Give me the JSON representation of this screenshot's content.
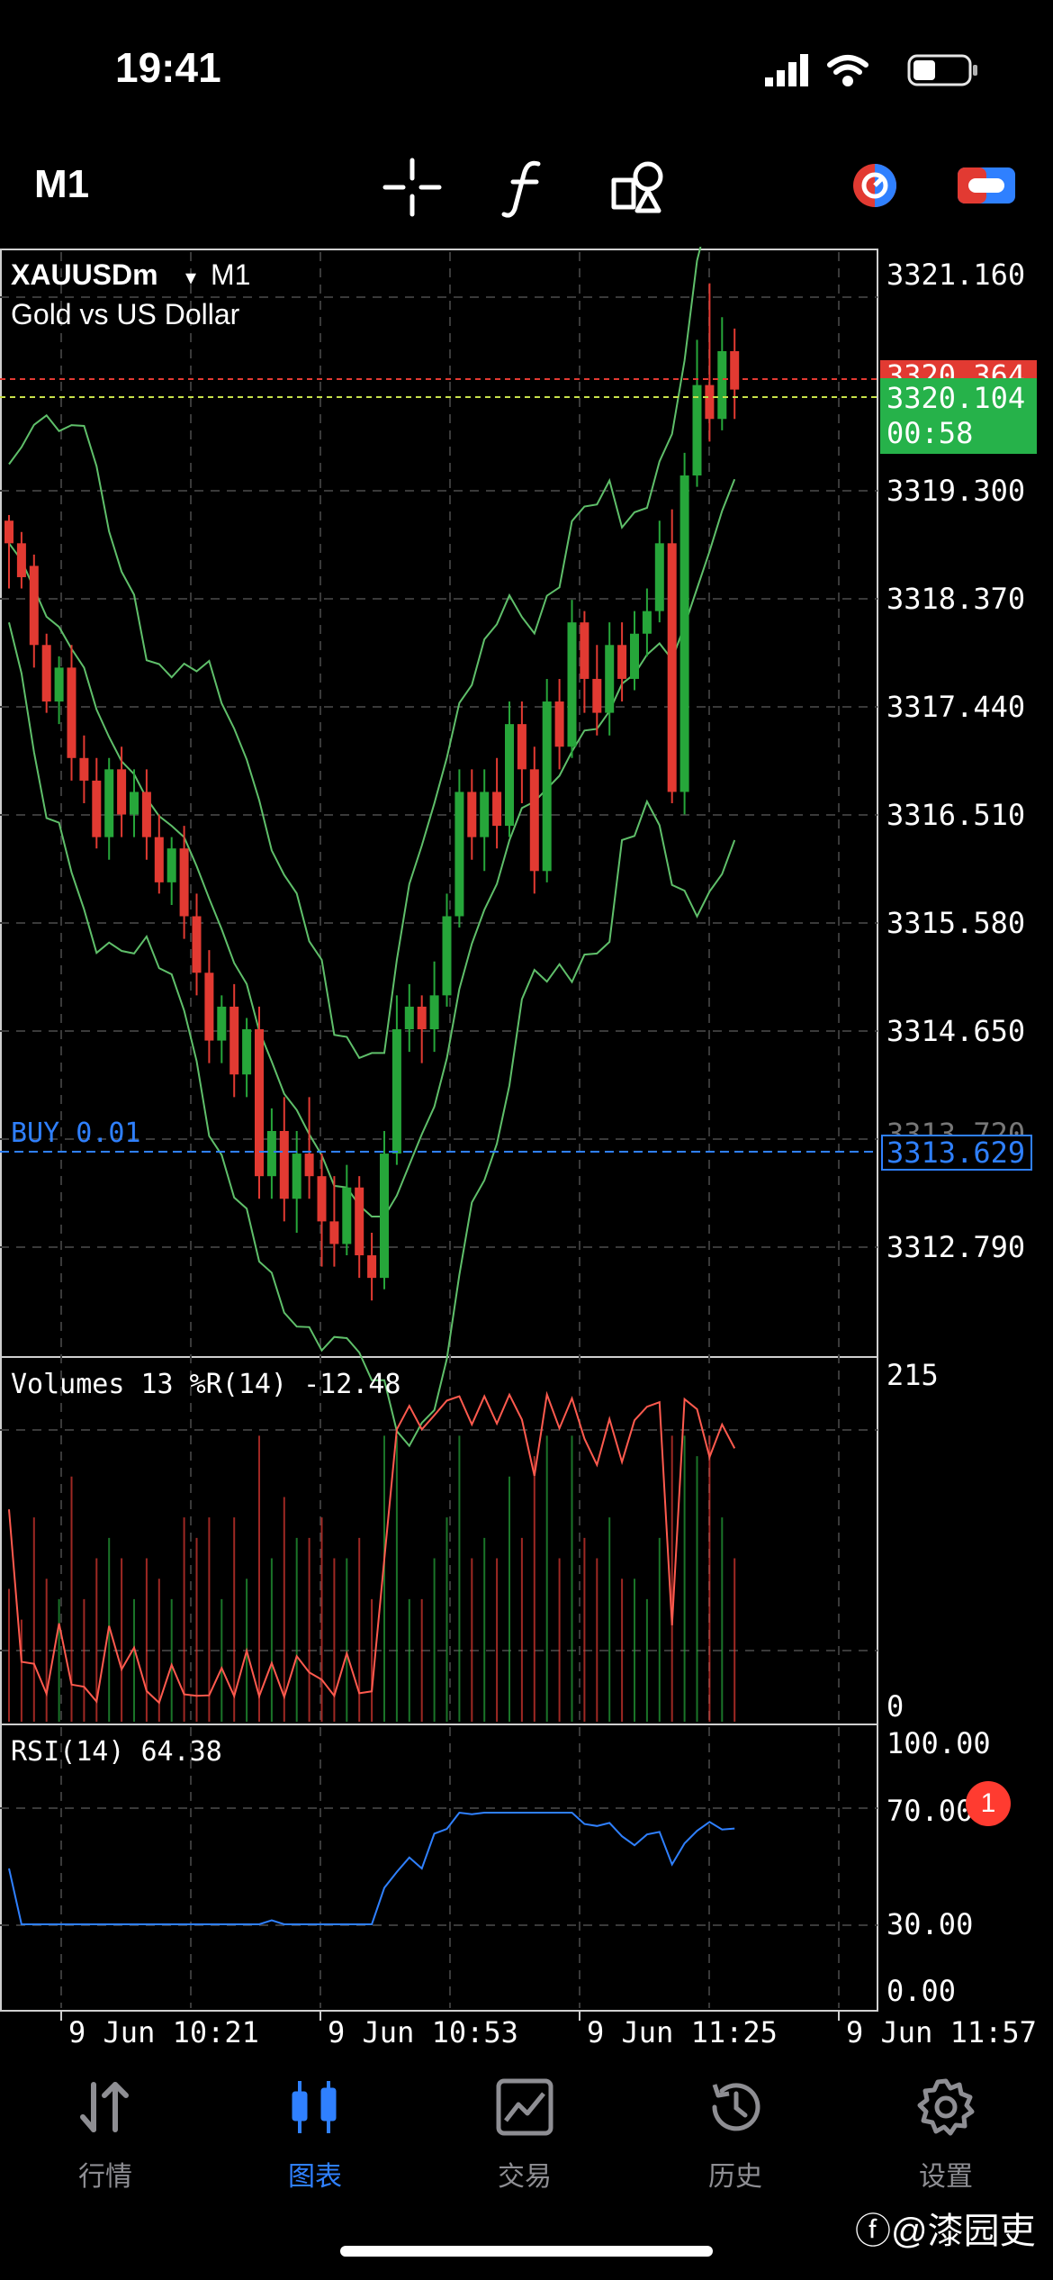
{
  "status": {
    "time": "19:41"
  },
  "toolbar": {
    "timeframe": "M1"
  },
  "chart_header": {
    "symbol": "XAUUSDm",
    "symbol_tf": "M1",
    "description": "Gold vs US Dollar"
  },
  "price_axis": [
    "3321.160",
    "3319.300",
    "3318.370",
    "3317.440",
    "3316.510",
    "3315.580",
    "3314.650",
    "3312.790"
  ],
  "price_labels": {
    "ask": "3320.364",
    "bid": "3320.104",
    "countdown": "00:58",
    "order_price": "3313.629",
    "order_hidden_tick": "3313.720"
  },
  "order_line": {
    "label": "BUY 0.01"
  },
  "volumes_panel": {
    "label": "Volumes 13 %R(14) -12.48",
    "max": "215",
    "min": "0"
  },
  "rsi_panel": {
    "label": "RSI(14) 64.38",
    "ticks": [
      "100.00",
      "70.00",
      "30.00",
      "0.00"
    ]
  },
  "time_axis": [
    "9 Jun 10:21",
    "9 Jun 10:53",
    "9 Jun 11:25",
    "9 Jun 11:57"
  ],
  "nav": [
    {
      "label": "行情",
      "icon": "quotes-icon"
    },
    {
      "label": "图表",
      "icon": "chart-icon",
      "active": true
    },
    {
      "label": "交易",
      "icon": "trade-icon"
    },
    {
      "label": "历史",
      "icon": "history-icon"
    },
    {
      "label": "设置",
      "icon": "settings-icon"
    }
  ],
  "settings_badge": "1",
  "watermark": "@漆园吏",
  "colors": {
    "bull": "#26a63a",
    "bear": "#e23a32",
    "accent": "#2f80ff",
    "grid": "#3a3a3a",
    "band": "#5fbf6a"
  },
  "chart_data": {
    "type": "candlestick",
    "symbol": "XAUUSDm",
    "timeframe": "M1",
    "y_range": [
      3311.8,
      3321.6
    ],
    "x_ticks": [
      "9 Jun 10:21",
      "9 Jun 10:53",
      "9 Jun 11:25",
      "9 Jun 11:57"
    ],
    "candles": [
      [
        3319.2,
        3319.0,
        3318.6,
        3319.25
      ],
      [
        3319.0,
        3318.7,
        3318.6,
        3319.1
      ],
      [
        3318.8,
        3318.1,
        3317.9,
        3318.9
      ],
      [
        3318.1,
        3317.6,
        3317.5,
        3318.2
      ],
      [
        3317.6,
        3317.9,
        3317.4,
        3318.0
      ],
      [
        3317.9,
        3317.1,
        3316.9,
        3318.1
      ],
      [
        3317.1,
        3316.9,
        3316.7,
        3317.3
      ],
      [
        3316.9,
        3316.4,
        3316.3,
        3317.1
      ],
      [
        3316.4,
        3317.0,
        3316.2,
        3317.1
      ],
      [
        3317.0,
        3316.6,
        3316.4,
        3317.2
      ],
      [
        3316.6,
        3316.8,
        3316.4,
        3317.0
      ],
      [
        3316.8,
        3316.4,
        3316.2,
        3317.0
      ],
      [
        3316.4,
        3316.0,
        3315.9,
        3316.6
      ],
      [
        3316.0,
        3316.3,
        3315.8,
        3316.4
      ],
      [
        3316.3,
        3315.7,
        3315.5,
        3316.5
      ],
      [
        3315.7,
        3315.2,
        3315.0,
        3315.9
      ],
      [
        3315.2,
        3314.6,
        3314.4,
        3315.4
      ],
      [
        3314.6,
        3314.9,
        3314.4,
        3315.0
      ],
      [
        3314.9,
        3314.3,
        3314.1,
        3315.1
      ],
      [
        3314.3,
        3314.7,
        3314.1,
        3314.8
      ],
      [
        3314.7,
        3313.4,
        3313.2,
        3314.9
      ],
      [
        3313.4,
        3313.8,
        3313.2,
        3314.0
      ],
      [
        3313.8,
        3313.2,
        3313.0,
        3314.1
      ],
      [
        3313.2,
        3313.6,
        3312.9,
        3313.8
      ],
      [
        3313.6,
        3313.4,
        3313.2,
        3314.1
      ],
      [
        3313.4,
        3313.0,
        3312.6,
        3313.6
      ],
      [
        3313.0,
        3312.8,
        3312.6,
        3313.4
      ],
      [
        3312.8,
        3313.3,
        3312.7,
        3313.5
      ],
      [
        3313.3,
        3312.7,
        3312.5,
        3313.4
      ],
      [
        3312.7,
        3312.5,
        3312.3,
        3312.9
      ],
      [
        3312.5,
        3313.6,
        3312.4,
        3313.8
      ],
      [
        3313.6,
        3314.7,
        3313.5,
        3315.0
      ],
      [
        3314.7,
        3314.9,
        3314.5,
        3315.1
      ],
      [
        3314.9,
        3314.7,
        3314.4,
        3315.0
      ],
      [
        3314.7,
        3315.0,
        3314.5,
        3315.3
      ],
      [
        3315.0,
        3315.7,
        3314.9,
        3315.9
      ],
      [
        3315.7,
        3316.8,
        3315.6,
        3317.0
      ],
      [
        3316.8,
        3316.4,
        3316.2,
        3317.0
      ],
      [
        3316.4,
        3316.8,
        3316.1,
        3317.0
      ],
      [
        3316.8,
        3316.5,
        3316.3,
        3317.1
      ],
      [
        3316.5,
        3317.4,
        3316.4,
        3317.6
      ],
      [
        3317.4,
        3317.0,
        3316.7,
        3317.6
      ],
      [
        3317.0,
        3316.1,
        3315.9,
        3317.2
      ],
      [
        3316.1,
        3317.6,
        3316.0,
        3317.8
      ],
      [
        3317.6,
        3317.2,
        3317.0,
        3317.8
      ],
      [
        3317.2,
        3318.3,
        3317.1,
        3318.5
      ],
      [
        3318.3,
        3317.8,
        3317.5,
        3318.4
      ],
      [
        3317.8,
        3317.5,
        3317.3,
        3318.1
      ],
      [
        3317.5,
        3318.1,
        3317.3,
        3318.3
      ],
      [
        3318.1,
        3317.8,
        3317.6,
        3318.3
      ],
      [
        3317.8,
        3318.2,
        3317.7,
        3318.4
      ],
      [
        3318.2,
        3318.4,
        3318.0,
        3318.6
      ],
      [
        3318.4,
        3319.0,
        3318.3,
        3319.2
      ],
      [
        3319.0,
        3316.8,
        3316.7,
        3319.3
      ],
      [
        3316.8,
        3319.6,
        3316.6,
        3319.8
      ],
      [
        3319.6,
        3320.4,
        3319.5,
        3320.8
      ],
      [
        3320.4,
        3320.1,
        3319.9,
        3321.3
      ],
      [
        3320.1,
        3320.7,
        3320.0,
        3321.0
      ],
      [
        3320.7,
        3320.36,
        3320.1,
        3320.9
      ]
    ]
  }
}
